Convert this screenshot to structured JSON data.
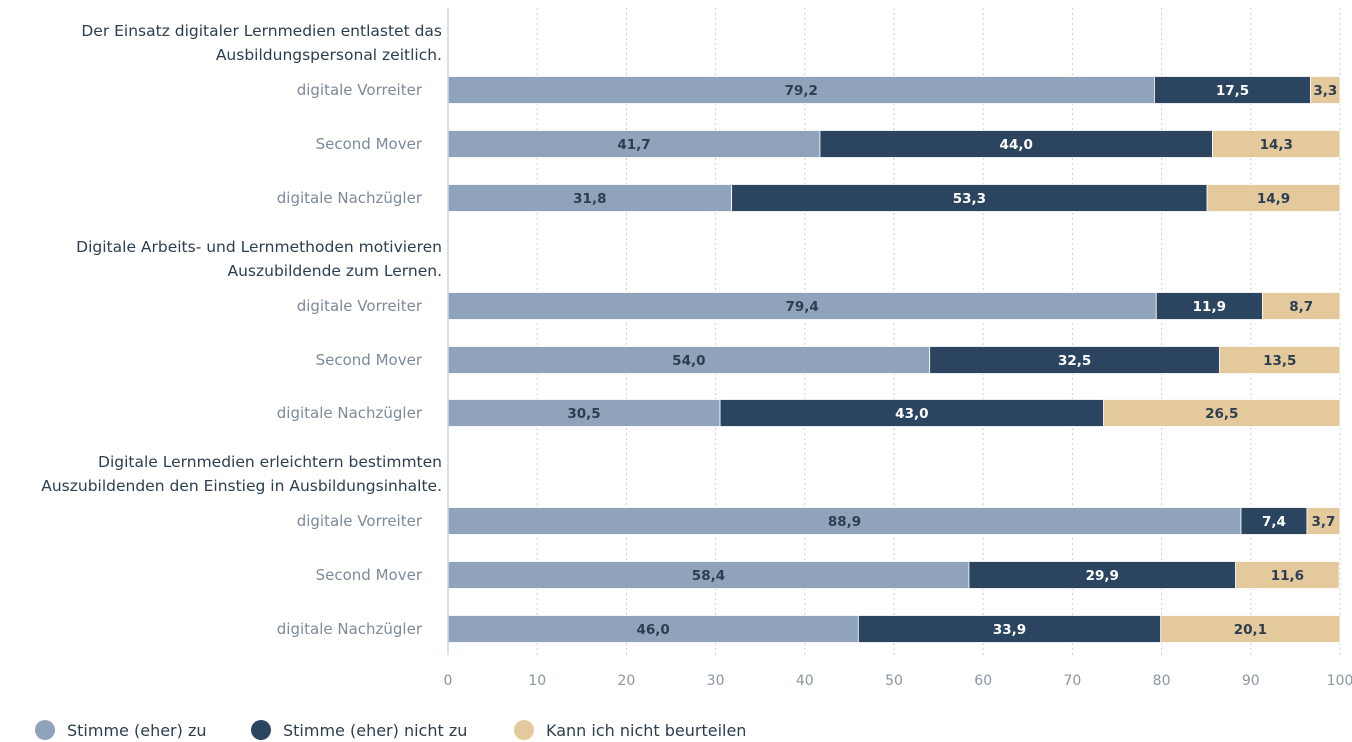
{
  "chart_data": {
    "type": "bar",
    "orientation": "horizontal",
    "stacked": true,
    "xlim": [
      0,
      100
    ],
    "xticks": [
      0,
      10,
      20,
      30,
      40,
      50,
      60,
      70,
      80,
      90,
      100
    ],
    "grid": true,
    "legend_position": "bottom-left",
    "series": [
      {
        "name": "Stimme (eher) zu",
        "color": "#8fa4bb",
        "label_color": "#2c3e50"
      },
      {
        "name": "Stimme (eher) nicht zu",
        "color": "#2b4560",
        "label_color": "#ffffff"
      },
      {
        "name": "Kann ich nicht beurteilen",
        "color": "#e3c99c",
        "label_color": "#2c3e50"
      }
    ],
    "groups": [
      {
        "title": [
          "Der Einsatz digitaler Lernmedien entlastet das",
          "Ausbildungspersonal zeitlich."
        ],
        "rows": [
          {
            "category": "digitale Vorreiter",
            "values": [
              79.2,
              17.5,
              3.3
            ],
            "labels": [
              "79,2",
              "17,5",
              "3,3"
            ]
          },
          {
            "category": "Second Mover",
            "values": [
              41.7,
              44.0,
              14.3
            ],
            "labels": [
              "41,7",
              "44,0",
              "14,3"
            ]
          },
          {
            "category": "digitale Nachzügler",
            "values": [
              31.8,
              53.3,
              14.9
            ],
            "labels": [
              "31,8",
              "53,3",
              "14,9"
            ]
          }
        ]
      },
      {
        "title": [
          "Digitale Arbeits- und Lernmethoden motivieren",
          "Auszubildende zum Lernen."
        ],
        "rows": [
          {
            "category": "digitale Vorreiter",
            "values": [
              79.4,
              11.9,
              8.7
            ],
            "labels": [
              "79,4",
              "11,9",
              "8,7"
            ]
          },
          {
            "category": "Second Mover",
            "values": [
              54.0,
              32.5,
              13.5
            ],
            "labels": [
              "54,0",
              "32,5",
              "13,5"
            ]
          },
          {
            "category": "digitale Nachzügler",
            "values": [
              30.5,
              43.0,
              26.5
            ],
            "labels": [
              "30,5",
              "43,0",
              "26,5"
            ]
          }
        ]
      },
      {
        "title": [
          "Digitale Lernmedien erleichtern bestimmten",
          "Auszubildenden den Einstieg in Ausbildungsinhalte."
        ],
        "rows": [
          {
            "category": "digitale Vorreiter",
            "values": [
              88.9,
              7.4,
              3.7
            ],
            "labels": [
              "88,9",
              "7,4",
              "3,7"
            ]
          },
          {
            "category": "Second Mover",
            "values": [
              58.4,
              29.9,
              11.6
            ],
            "labels": [
              "58,4",
              "29,9",
              "11,6"
            ]
          },
          {
            "category": "digitale Nachzügler",
            "values": [
              46.0,
              33.9,
              20.1
            ],
            "labels": [
              "46,0",
              "33,9",
              "20,1"
            ]
          }
        ]
      }
    ]
  }
}
